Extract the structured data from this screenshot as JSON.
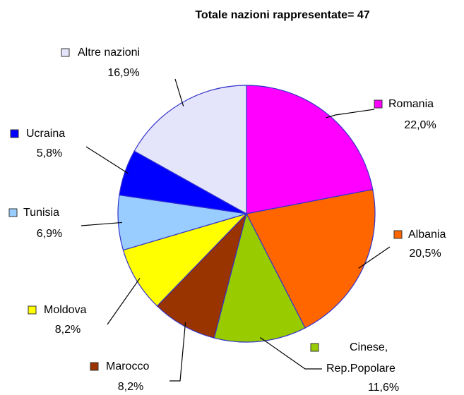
{
  "chart_data": {
    "type": "pie",
    "title": "Totale nazioni rappresentate= 47",
    "categories": [
      "Romania",
      "Albania",
      "Cinese, Rep.Popolare",
      "Marocco",
      "Moldova",
      "Tunisia",
      "Ucraina",
      "Altre nazioni"
    ],
    "values": [
      22.0,
      20.5,
      11.6,
      8.2,
      8.2,
      6.9,
      5.8,
      16.9
    ],
    "value_labels": [
      "22,0%",
      "20,5%",
      "11,6%",
      "8,2%",
      "8,2%",
      "6,9%",
      "5,8%",
      "16,9%"
    ],
    "colors": [
      "#ff00ff",
      "#ff6600",
      "#99cc00",
      "#993300",
      "#ffff00",
      "#99ccff",
      "#0000ff",
      "#e4e4fa"
    ]
  }
}
